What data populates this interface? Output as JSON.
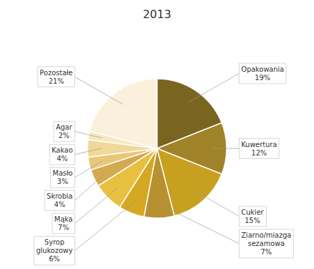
{
  "chart_data": {
    "type": "pie",
    "title": "2013",
    "categories": [
      "Opakowania",
      "Kuwertura",
      "Cukier",
      "Ziarno/miazga\nsezamowa",
      "Syrop\nglukozowy",
      "Mąka",
      "Skrobia",
      "Masło",
      "Kakao",
      "Agar",
      "Pozostałe"
    ],
    "values": [
      19,
      12,
      15,
      7,
      6,
      7,
      4,
      3,
      4,
      2,
      21
    ],
    "value_labels": [
      "19%",
      "12%",
      "15%",
      "7%",
      "6%",
      "7%",
      "4%",
      "3%",
      "4%",
      "2%",
      "21%"
    ],
    "colors": [
      "#7a6520",
      "#a08328",
      "#c8a020",
      "#b89030",
      "#d4a820",
      "#e8c040",
      "#d4aa50",
      "#e8c878",
      "#f0d898",
      "#f5e8c0",
      "#faf0dc"
    ],
    "data_labels": true
  }
}
